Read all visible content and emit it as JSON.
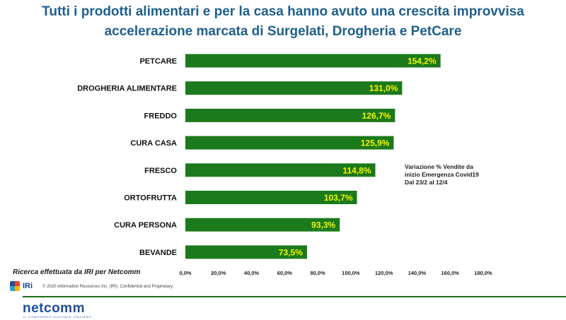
{
  "chart_data": {
    "type": "bar",
    "orientation": "horizontal",
    "title": "Tutti i prodotti alimentari e per la casa hanno avuto una crescita improvvisa",
    "subtitle": "accelerazione marcata di Surgelati, Drogheria e PetCare",
    "categories": [
      "PETCARE",
      "DROGHERIA ALIMENTARE",
      "FREDDO",
      "CURA CASA",
      "FRESCO",
      "ORTOFRUTTA",
      "CURA PERSONA",
      "BEVANDE"
    ],
    "values": [
      154.2,
      131.0,
      126.7,
      125.9,
      114.8,
      103.7,
      93.3,
      73.5
    ],
    "data_labels": [
      "154,2%",
      "131,0%",
      "126,7%",
      "125,9%",
      "114,8%",
      "103,7%",
      "93,3%",
      "73,5%"
    ],
    "xlim": [
      0,
      180
    ],
    "xticks": [
      0,
      20,
      40,
      60,
      80,
      100,
      120,
      140,
      160,
      180
    ],
    "xtick_labels": [
      "0,0%",
      "20,0%",
      "40,0%",
      "60,0%",
      "80,0%",
      "100,0%",
      "120,0%",
      "140,0%",
      "160,0%",
      "180,0%"
    ],
    "grid": false,
    "bar_color": "#1b7a1b",
    "label_color": "#f5f500",
    "annotation": [
      "Variazione % Vendite da",
      "inizio Emergenza Covid19",
      "Dal 23/2 al 12/4"
    ]
  },
  "footer": {
    "source": "Ricerca effettuata da IRI per Netcomm",
    "copyright": "© 2020 Information Resources Inc. (IRI). Confidential and Proprietary.",
    "iri_logo": "IRi",
    "netcomm_logo": "netcomm",
    "netcomm_tagline": "IL CONSORZIO DIGITALE ITALIANO",
    "rule_color": "#1b6e1b"
  }
}
